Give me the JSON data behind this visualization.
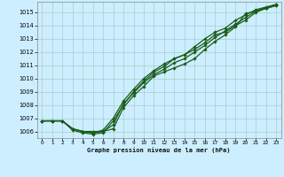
{
  "title": "Graphe pression niveau de la mer (hPa)",
  "background_color": "#cceeff",
  "grid_color": "#aacccc",
  "line_color": "#1a5c1a",
  "marker_color": "#1a5c1a",
  "xlim": [
    -0.5,
    23.5
  ],
  "ylim": [
    1005.5,
    1015.8
  ],
  "yticks": [
    1006,
    1007,
    1008,
    1009,
    1010,
    1011,
    1012,
    1013,
    1014,
    1015
  ],
  "xticks": [
    0,
    1,
    2,
    3,
    4,
    5,
    6,
    7,
    8,
    9,
    10,
    11,
    12,
    13,
    14,
    15,
    16,
    17,
    18,
    19,
    20,
    21,
    22,
    23
  ],
  "series": [
    [
      1006.8,
      1006.8,
      1006.8,
      1006.2,
      1006.0,
      1006.0,
      1006.0,
      1006.2,
      1007.8,
      1008.7,
      1009.4,
      1010.2,
      1010.5,
      1010.8,
      1011.1,
      1011.5,
      1012.2,
      1012.8,
      1013.3,
      1013.9,
      1014.9,
      1015.1,
      1015.3,
      1015.5
    ],
    [
      1006.8,
      1006.8,
      1006.8,
      1006.1,
      1005.9,
      1005.8,
      1005.9,
      1006.8,
      1008.0,
      1009.0,
      1009.8,
      1010.5,
      1010.9,
      1011.5,
      1011.8,
      1012.2,
      1012.7,
      1013.3,
      1013.5,
      1014.0,
      1014.4,
      1015.0,
      1015.3,
      1015.55
    ],
    [
      1006.8,
      1006.8,
      1006.8,
      1006.2,
      1006.0,
      1005.9,
      1006.1,
      1007.0,
      1008.3,
      1009.2,
      1010.0,
      1010.6,
      1011.1,
      1011.5,
      1011.8,
      1012.4,
      1013.0,
      1013.5,
      1013.8,
      1014.4,
      1014.8,
      1015.2,
      1015.4,
      1015.6
    ],
    [
      1006.8,
      1006.8,
      1006.8,
      1006.2,
      1006.0,
      1005.9,
      1006.0,
      1006.5,
      1008.1,
      1008.9,
      1009.7,
      1010.3,
      1010.7,
      1011.2,
      1011.5,
      1012.0,
      1012.5,
      1013.1,
      1013.6,
      1014.1,
      1014.6,
      1015.1,
      1015.35,
      1015.58
    ]
  ],
  "figsize": [
    3.2,
    2.0
  ],
  "dpi": 100
}
